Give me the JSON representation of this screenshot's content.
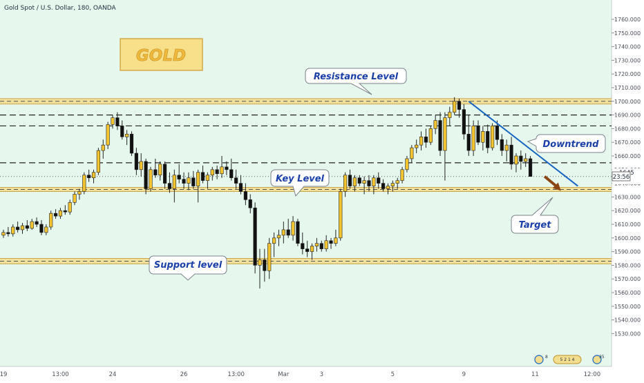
{
  "header": {
    "symbol_title": "Gold Spot / U.S. Dollar, 180, OANDA"
  },
  "colors": {
    "background": "#e6f8ee",
    "candle_up": "#f4c430",
    "candle_down": "#111111",
    "zone_fill": "#f3dd8e",
    "trendline": "#1565c0",
    "target_arrow": "#8b4513",
    "callout_text": "#1a3fa8"
  },
  "badges": {
    "gold_badge": "GOLD"
  },
  "price_label": {
    "value": "1645",
    "countdown": "23:56"
  },
  "bottom_widgets": {
    "w1": "8",
    "w2": "5 2 1 4",
    "w3": "35"
  },
  "chart_data": {
    "type": "candlestick",
    "title": "Gold Spot / U.S. Dollar, 180, OANDA",
    "ylim": [
      1525,
      1770
    ],
    "y_ticks": [
      1530,
      1540,
      1550,
      1560,
      1570,
      1580,
      1590,
      1600,
      1610,
      1620,
      1630,
      1640,
      1650,
      1660,
      1670,
      1680,
      1690,
      1700,
      1710,
      1720,
      1730,
      1740,
      1750,
      1760
    ],
    "y_tick_labels": [
      "1530.000",
      "1540.000",
      "1550.000",
      "1560.000",
      "1570.000",
      "1580.000",
      "1590.000",
      "1600.000",
      "1610.000",
      "1620.000",
      "1630.000",
      "1640.000",
      "1650.000",
      "1660.000",
      "1670.000",
      "1680.000",
      "1690.000",
      "1700.000",
      "1710.000",
      "1720.000",
      "1730.000",
      "1740.000",
      "1750.000",
      "1760.000"
    ],
    "x_ticks": [
      {
        "label": "19",
        "bar": 0
      },
      {
        "label": "13:00",
        "bar": 12
      },
      {
        "label": "24",
        "bar": 23
      },
      {
        "label": "26",
        "bar": 38
      },
      {
        "label": "13:00",
        "bar": 49
      },
      {
        "label": "Mar",
        "bar": 59
      },
      {
        "label": "3",
        "bar": 67
      },
      {
        "label": "5",
        "bar": 82
      },
      {
        "label": "9",
        "bar": 97
      },
      {
        "label": "11",
        "bar": 112
      },
      {
        "label": "12:00",
        "bar": 124
      }
    ],
    "ohlc": [
      [
        1602,
        1606,
        1600,
        1604
      ],
      [
        1604,
        1608,
        1601,
        1603
      ],
      [
        1603,
        1610,
        1601,
        1608
      ],
      [
        1608,
        1612,
        1604,
        1606
      ],
      [
        1606,
        1611,
        1603,
        1609
      ],
      [
        1609,
        1613,
        1605,
        1607
      ],
      [
        1607,
        1614,
        1606,
        1612
      ],
      [
        1612,
        1615,
        1608,
        1610
      ],
      [
        1610,
        1613,
        1602,
        1604
      ],
      [
        1604,
        1610,
        1602,
        1608
      ],
      [
        1608,
        1620,
        1606,
        1618
      ],
      [
        1618,
        1621,
        1614,
        1616
      ],
      [
        1616,
        1622,
        1614,
        1620
      ],
      [
        1620,
        1624,
        1617,
        1619
      ],
      [
        1619,
        1628,
        1617,
        1626
      ],
      [
        1626,
        1634,
        1624,
        1632
      ],
      [
        1632,
        1636,
        1628,
        1634
      ],
      [
        1634,
        1648,
        1632,
        1646
      ],
      [
        1646,
        1650,
        1641,
        1644
      ],
      [
        1644,
        1650,
        1640,
        1648
      ],
      [
        1648,
        1666,
        1646,
        1664
      ],
      [
        1664,
        1672,
        1658,
        1668
      ],
      [
        1668,
        1685,
        1665,
        1683
      ],
      [
        1683,
        1690,
        1680,
        1688
      ],
      [
        1688,
        1692,
        1679,
        1682
      ],
      [
        1682,
        1686,
        1672,
        1674
      ],
      [
        1674,
        1679,
        1668,
        1676
      ],
      [
        1676,
        1678,
        1660,
        1662
      ],
      [
        1662,
        1666,
        1646,
        1650
      ],
      [
        1650,
        1662,
        1645,
        1656
      ],
      [
        1656,
        1658,
        1632,
        1636
      ],
      [
        1636,
        1652,
        1634,
        1650
      ],
      [
        1650,
        1658,
        1644,
        1646
      ],
      [
        1646,
        1656,
        1642,
        1654
      ],
      [
        1654,
        1656,
        1636,
        1640
      ],
      [
        1640,
        1648,
        1633,
        1636
      ],
      [
        1636,
        1650,
        1626,
        1646
      ],
      [
        1646,
        1654,
        1640,
        1643
      ],
      [
        1643,
        1648,
        1636,
        1640
      ],
      [
        1640,
        1648,
        1635,
        1644
      ],
      [
        1644,
        1649,
        1636,
        1638
      ],
      [
        1638,
        1650,
        1626,
        1648
      ],
      [
        1648,
        1653,
        1640,
        1642
      ],
      [
        1642,
        1648,
        1636,
        1646
      ],
      [
        1646,
        1652,
        1642,
        1650
      ],
      [
        1650,
        1653,
        1643,
        1647
      ],
      [
        1647,
        1660,
        1644,
        1652
      ],
      [
        1652,
        1656,
        1646,
        1650
      ],
      [
        1650,
        1658,
        1642,
        1644
      ],
      [
        1644,
        1650,
        1636,
        1640
      ],
      [
        1640,
        1646,
        1632,
        1634
      ],
      [
        1634,
        1640,
        1624,
        1628
      ],
      [
        1628,
        1632,
        1618,
        1622
      ],
      [
        1622,
        1626,
        1574,
        1580
      ],
      [
        1580,
        1592,
        1563,
        1584
      ],
      [
        1584,
        1592,
        1568,
        1576
      ],
      [
        1576,
        1600,
        1570,
        1596
      ],
      [
        1596,
        1604,
        1586,
        1600
      ],
      [
        1600,
        1606,
        1594,
        1602
      ],
      [
        1602,
        1612,
        1596,
        1606
      ],
      [
        1606,
        1614,
        1600,
        1602
      ],
      [
        1602,
        1616,
        1598,
        1612
      ],
      [
        1612,
        1614,
        1594,
        1596
      ],
      [
        1596,
        1604,
        1588,
        1592
      ],
      [
        1592,
        1598,
        1586,
        1590
      ],
      [
        1590,
        1596,
        1584,
        1594
      ],
      [
        1594,
        1600,
        1590,
        1596
      ],
      [
        1596,
        1598,
        1590,
        1592
      ],
      [
        1592,
        1602,
        1590,
        1598
      ],
      [
        1598,
        1600,
        1592,
        1596
      ],
      [
        1596,
        1606,
        1594,
        1600
      ],
      [
        1600,
        1636,
        1598,
        1634
      ],
      [
        1634,
        1648,
        1630,
        1646
      ],
      [
        1646,
        1650,
        1636,
        1638
      ],
      [
        1638,
        1646,
        1634,
        1644
      ],
      [
        1644,
        1646,
        1638,
        1640
      ],
      [
        1640,
        1645,
        1632,
        1642
      ],
      [
        1642,
        1646,
        1634,
        1638
      ],
      [
        1638,
        1646,
        1632,
        1644
      ],
      [
        1644,
        1648,
        1636,
        1640
      ],
      [
        1640,
        1643,
        1634,
        1636
      ],
      [
        1636,
        1640,
        1632,
        1638
      ],
      [
        1638,
        1642,
        1634,
        1640
      ],
      [
        1640,
        1644,
        1636,
        1642
      ],
      [
        1642,
        1652,
        1640,
        1650
      ],
      [
        1650,
        1660,
        1648,
        1658
      ],
      [
        1658,
        1668,
        1655,
        1666
      ],
      [
        1666,
        1672,
        1662,
        1668
      ],
      [
        1668,
        1678,
        1664,
        1674
      ],
      [
        1674,
        1680,
        1666,
        1670
      ],
      [
        1670,
        1682,
        1668,
        1680
      ],
      [
        1680,
        1690,
        1676,
        1686
      ],
      [
        1686,
        1692,
        1660,
        1664
      ],
      [
        1664,
        1692,
        1642,
        1688
      ],
      [
        1688,
        1696,
        1682,
        1692
      ],
      [
        1692,
        1703,
        1690,
        1700
      ],
      [
        1700,
        1702,
        1688,
        1694
      ],
      [
        1694,
        1698,
        1672,
        1676
      ],
      [
        1676,
        1690,
        1660,
        1664
      ],
      [
        1664,
        1686,
        1660,
        1682
      ],
      [
        1682,
        1686,
        1668,
        1670
      ],
      [
        1670,
        1682,
        1664,
        1678
      ],
      [
        1678,
        1683,
        1662,
        1666
      ],
      [
        1666,
        1684,
        1664,
        1682
      ],
      [
        1682,
        1686,
        1668,
        1672
      ],
      [
        1672,
        1676,
        1660,
        1664
      ],
      [
        1664,
        1672,
        1656,
        1668
      ],
      [
        1668,
        1674,
        1650,
        1654
      ],
      [
        1654,
        1662,
        1648,
        1660
      ],
      [
        1660,
        1664,
        1650,
        1656
      ],
      [
        1656,
        1662,
        1652,
        1658
      ],
      [
        1658,
        1660,
        1646,
        1645
      ]
    ],
    "horizontal_levels": [
      {
        "name": "resistance-zone",
        "price_low": 1698,
        "price_high": 1702,
        "style": "zone"
      },
      {
        "name": "dashed-1690",
        "price": 1690,
        "style": "dashed"
      },
      {
        "name": "dashed-1682",
        "price": 1682,
        "style": "dashed"
      },
      {
        "name": "dashed-1655",
        "price": 1655,
        "style": "dashed"
      },
      {
        "name": "dotted-last",
        "price": 1645,
        "style": "dotted"
      },
      {
        "name": "key-zone",
        "price_low": 1634,
        "price_high": 1637,
        "style": "zone"
      },
      {
        "name": "support-zone",
        "price_low": 1581,
        "price_high": 1585,
        "style": "zone"
      }
    ],
    "trendline": {
      "from_bar": 98,
      "from_price": 1700,
      "to_bar": 121,
      "to_price": 1638
    },
    "target_arrow": {
      "from_bar": 114,
      "from_price": 1645,
      "to_bar": 117,
      "to_price": 1636
    },
    "annotations": [
      {
        "id": "resistance",
        "text": "Resistance Level"
      },
      {
        "id": "downtrend",
        "text": "Downtrend"
      },
      {
        "id": "key",
        "text": "Key Level"
      },
      {
        "id": "target",
        "text": "Target"
      },
      {
        "id": "support",
        "text": "Support level"
      }
    ]
  }
}
